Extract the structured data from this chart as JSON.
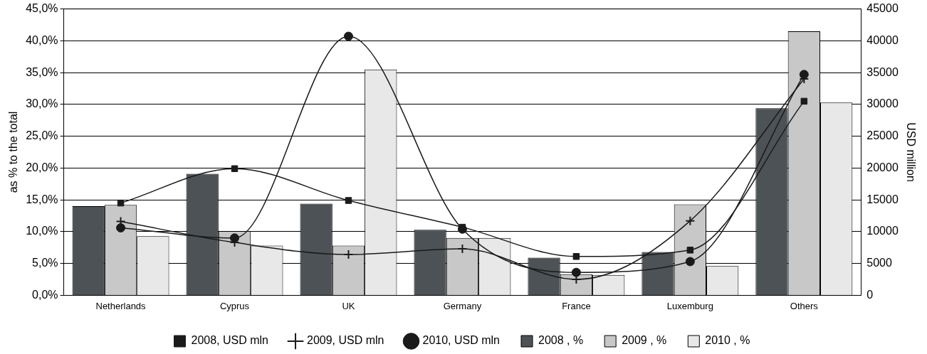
{
  "chart_data": {
    "type": "bar",
    "ylabel": "as % to the total",
    "y2label": "USD million",
    "categories": [
      "Netherlands",
      "Cyprus",
      "UK",
      "Germany",
      "France",
      "Luxemburg",
      "Others"
    ],
    "series": [
      {
        "name": "2008 , %",
        "color": "#4d5256",
        "values": [
          14.0,
          19.1,
          14.4,
          10.3,
          5.9,
          6.8,
          29.4
        ]
      },
      {
        "name": "2009 , %",
        "color": "#c8c8c8",
        "values": [
          14.2,
          10.1,
          7.8,
          9.0,
          3.3,
          14.3,
          41.5
        ]
      },
      {
        "name": "2010 , %",
        "color": "#e8e8e8",
        "values": [
          9.3,
          7.8,
          35.5,
          9.0,
          3.2,
          4.6,
          30.3
        ]
      },
      {
        "name": "2008, USD mln",
        "type": "line",
        "axis": "y2",
        "color": "#1a1a1a",
        "marker": "square",
        "values": [
          14500,
          19900,
          14900,
          10700,
          6100,
          7100,
          30500
        ]
      },
      {
        "name": "2009, USD mln",
        "type": "line",
        "axis": "y2",
        "color": "#1a1a1a",
        "marker": "cross",
        "values": [
          11600,
          8300,
          6400,
          7300,
          2500,
          11700,
          34000
        ]
      },
      {
        "name": "2010, USD mln",
        "type": "line",
        "axis": "y2",
        "color": "#1a1a1a",
        "marker": "circle",
        "values": [
          10600,
          9000,
          40700,
          10400,
          3600,
          5300,
          34700
        ]
      }
    ],
    "ylim": [
      0,
      45
    ],
    "yticks": [
      {
        "value": 0,
        "label": "0,0%"
      },
      {
        "value": 5,
        "label": "5,0%"
      },
      {
        "value": 10,
        "label": "10,0%"
      },
      {
        "value": 15,
        "label": "15,0%"
      },
      {
        "value": 20,
        "label": "20,0%"
      },
      {
        "value": 25,
        "label": "25,0%"
      },
      {
        "value": 30,
        "label": "30,0%"
      },
      {
        "value": 35,
        "label": "35,0%"
      },
      {
        "value": 40,
        "label": "40,0%"
      },
      {
        "value": 45,
        "label": "45,0%"
      }
    ],
    "y2lim": [
      0,
      45000
    ],
    "y2ticks": [
      0,
      5000,
      10000,
      15000,
      20000,
      25000,
      30000,
      35000,
      40000,
      45000
    ],
    "grid": "y",
    "legend": "bottom"
  }
}
